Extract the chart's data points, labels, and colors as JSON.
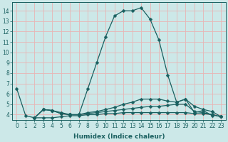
{
  "xlabel": "Humidex (Indice chaleur)",
  "xlim": [
    -0.5,
    23.5
  ],
  "ylim": [
    3.5,
    14.8
  ],
  "xticks": [
    0,
    1,
    2,
    3,
    4,
    5,
    6,
    7,
    8,
    9,
    10,
    11,
    12,
    13,
    14,
    15,
    16,
    17,
    18,
    19,
    20,
    21,
    22,
    23
  ],
  "yticks": [
    4,
    5,
    6,
    7,
    8,
    9,
    10,
    11,
    12,
    13,
    14
  ],
  "bg_color": "#cce8e8",
  "grid_color": "#e8b4b4",
  "line_color": "#1a6060",
  "lines": [
    {
      "x": [
        0,
        1,
        2,
        3,
        4,
        5,
        6,
        7,
        8,
        9,
        10,
        11,
        12,
        13,
        14,
        15,
        16,
        17,
        18,
        19,
        20,
        21,
        22
      ],
      "y": [
        6.5,
        3.9,
        3.7,
        4.5,
        4.4,
        4.2,
        4.0,
        4.0,
        6.5,
        9.0,
        11.5,
        13.5,
        14.0,
        14.0,
        14.3,
        13.2,
        11.2,
        7.8,
        5.2,
        5.5,
        4.2,
        4.4,
        3.9
      ]
    },
    {
      "x": [
        2,
        3,
        4,
        5,
        6,
        7,
        8,
        9,
        10,
        11,
        12,
        13,
        14,
        15,
        16,
        17,
        18,
        19,
        20,
        21,
        22,
        23
      ],
      "y": [
        3.7,
        4.5,
        4.4,
        4.1,
        4.0,
        4.0,
        4.2,
        4.3,
        4.5,
        4.7,
        5.0,
        5.2,
        5.5,
        5.5,
        5.5,
        5.3,
        5.2,
        5.5,
        4.8,
        4.5,
        4.3,
        3.8
      ]
    },
    {
      "x": [
        2,
        3,
        4,
        5,
        6,
        7,
        8,
        9,
        10,
        11,
        12,
        13,
        14,
        15,
        16,
        17,
        18,
        19,
        20,
        21,
        22,
        23
      ],
      "y": [
        3.7,
        4.5,
        4.4,
        4.1,
        4.0,
        4.0,
        4.1,
        4.2,
        4.3,
        4.4,
        4.5,
        4.6,
        4.7,
        4.8,
        4.8,
        4.9,
        5.0,
        5.0,
        4.3,
        4.2,
        4.0,
        3.8
      ]
    },
    {
      "x": [
        2,
        3,
        4,
        5,
        6,
        7,
        8,
        9,
        10,
        11,
        12,
        13,
        14,
        15,
        16,
        17,
        18,
        19,
        20,
        21,
        22,
        23
      ],
      "y": [
        3.7,
        3.7,
        3.7,
        3.8,
        3.9,
        3.9,
        4.0,
        4.0,
        4.1,
        4.1,
        4.2,
        4.2,
        4.2,
        4.2,
        4.2,
        4.2,
        4.2,
        4.2,
        4.1,
        4.1,
        4.0,
        3.8
      ]
    }
  ],
  "xlabel_fontsize": 6.5,
  "tick_fontsize": 5.5,
  "marker_size": 2.5,
  "line_width": 0.9
}
